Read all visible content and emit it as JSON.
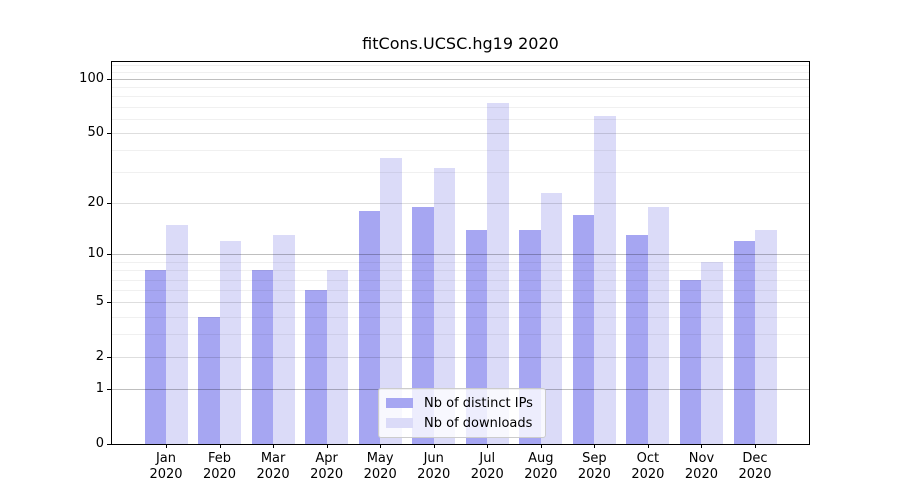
{
  "title": "fitCons.UCSC.hg19 2020",
  "chart_data": {
    "type": "bar",
    "title": "fitCons.UCSC.hg19 2020",
    "categories": [
      "Jan",
      "Feb",
      "Mar",
      "Apr",
      "May",
      "Jun",
      "Jul",
      "Aug",
      "Sep",
      "Oct",
      "Nov",
      "Dec"
    ],
    "category_year": "2020",
    "series": [
      {
        "name": "Nb of distinct IPs",
        "color": "#a6a6f2",
        "values": [
          8,
          4,
          8,
          6,
          18,
          19,
          14,
          14,
          17,
          13,
          7,
          12
        ]
      },
      {
        "name": "Nb of downloads",
        "color": "#dbdbf8",
        "values": [
          15,
          12,
          13,
          8,
          36,
          32,
          74,
          23,
          62,
          19,
          9,
          14
        ]
      }
    ],
    "y_axis": {
      "scale": "log1p",
      "ymax": 124.3,
      "tick_values": [
        100,
        50,
        20,
        10,
        5,
        2,
        1,
        0
      ],
      "tick_labels": [
        "100",
        "50",
        "20",
        "10",
        "5",
        "2",
        "1",
        "0"
      ],
      "major_gridlines": [
        1,
        10,
        100
      ],
      "semi_gridlines": [
        2,
        5,
        20,
        50
      ],
      "minor_gridlines": [
        3,
        4,
        6,
        7,
        8,
        9,
        30,
        40,
        60,
        70,
        80,
        90,
        110,
        120
      ]
    },
    "xlabel": "",
    "ylabel": "",
    "grid": true,
    "legend_position": "bottom-center"
  },
  "colors": {
    "bar_ips": "#a6a6f2",
    "bar_downloads": "#dbdbf8",
    "spine": "#000000",
    "legend_border": "#cccccc",
    "gridline_major": "#b8b8b8"
  }
}
